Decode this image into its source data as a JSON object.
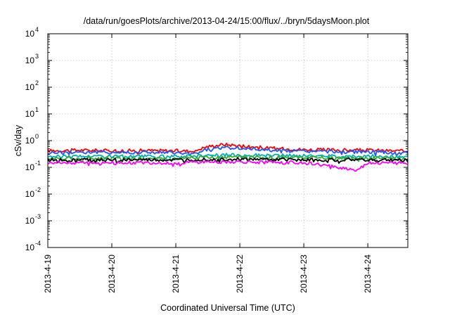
{
  "chart_data": {
    "type": "line",
    "title": "/data/run/goesPlots/archive/2013-04-24/15:00/flux/../bryn/5daysMoon.plot",
    "xlabel": "Coordinated Universal Time (UTC)",
    "ylabel": "cSv/day",
    "yscale": "log",
    "ylim": [
      0.0001,
      10000
    ],
    "y_ticks": [
      {
        "base": "10",
        "exp": "4"
      },
      {
        "base": "10",
        "exp": "3"
      },
      {
        "base": "10",
        "exp": "2"
      },
      {
        "base": "10",
        "exp": "1"
      },
      {
        "base": "10",
        "exp": "0"
      },
      {
        "base": "10",
        "exp": "-1"
      },
      {
        "base": "10",
        "exp": "-2"
      },
      {
        "base": "10",
        "exp": "-3"
      },
      {
        "base": "10",
        "exp": "-4"
      }
    ],
    "x_ticks": [
      "2013-4-19",
      "2013-4-20",
      "2013-4-21",
      "2013-4-22",
      "2013-4-23",
      "2013-4-24"
    ],
    "xlim": [
      "2013-04-19T00:00",
      "2013-04-24T15:00"
    ],
    "grid": true,
    "series": [
      {
        "color": "#ff0000",
        "values": [
          {
            "x": "2013-04-19T00:00",
            "y": 0.42
          },
          {
            "x": "2013-04-19T12:00",
            "y": 0.44
          },
          {
            "x": "2013-04-20T00:00",
            "y": 0.42
          },
          {
            "x": "2013-04-20T12:00",
            "y": 0.43
          },
          {
            "x": "2013-04-21T00:00",
            "y": 0.42
          },
          {
            "x": "2013-04-21T06:00",
            "y": 0.4
          },
          {
            "x": "2013-04-21T12:00",
            "y": 0.6
          },
          {
            "x": "2013-04-21T18:00",
            "y": 0.72
          },
          {
            "x": "2013-04-22T00:00",
            "y": 0.65
          },
          {
            "x": "2013-04-22T12:00",
            "y": 0.52
          },
          {
            "x": "2013-04-23T00:00",
            "y": 0.46
          },
          {
            "x": "2013-04-23T12:00",
            "y": 0.45
          },
          {
            "x": "2013-04-24T00:00",
            "y": 0.44
          },
          {
            "x": "2013-04-24T15:00",
            "y": 0.4
          }
        ]
      },
      {
        "color": "#2255ff",
        "values": [
          {
            "x": "2013-04-19T00:00",
            "y": 0.36
          },
          {
            "x": "2013-04-19T12:00",
            "y": 0.38
          },
          {
            "x": "2013-04-20T00:00",
            "y": 0.36
          },
          {
            "x": "2013-04-20T12:00",
            "y": 0.37
          },
          {
            "x": "2013-04-21T00:00",
            "y": 0.35
          },
          {
            "x": "2013-04-21T06:00",
            "y": 0.3
          },
          {
            "x": "2013-04-21T12:00",
            "y": 0.48
          },
          {
            "x": "2013-04-21T18:00",
            "y": 0.55
          },
          {
            "x": "2013-04-22T00:00",
            "y": 0.52
          },
          {
            "x": "2013-04-22T12:00",
            "y": 0.44
          },
          {
            "x": "2013-04-23T00:00",
            "y": 0.4
          },
          {
            "x": "2013-04-23T12:00",
            "y": 0.39
          },
          {
            "x": "2013-04-24T00:00",
            "y": 0.38
          },
          {
            "x": "2013-04-24T15:00",
            "y": 0.33
          }
        ]
      },
      {
        "color": "#00b0b0",
        "values": [
          {
            "x": "2013-04-19T00:00",
            "y": 0.26
          },
          {
            "x": "2013-04-20T00:00",
            "y": 0.26
          },
          {
            "x": "2013-04-21T00:00",
            "y": 0.25
          },
          {
            "x": "2013-04-21T12:00",
            "y": 0.29
          },
          {
            "x": "2013-04-22T00:00",
            "y": 0.29
          },
          {
            "x": "2013-04-23T00:00",
            "y": 0.27
          },
          {
            "x": "2013-04-24T00:00",
            "y": 0.26
          },
          {
            "x": "2013-04-24T15:00",
            "y": 0.25
          }
        ]
      },
      {
        "color": "#33aa33",
        "values": [
          {
            "x": "2013-04-19T00:00",
            "y": 0.22
          },
          {
            "x": "2013-04-20T00:00",
            "y": 0.22
          },
          {
            "x": "2013-04-21T00:00",
            "y": 0.21
          },
          {
            "x": "2013-04-21T12:00",
            "y": 0.24
          },
          {
            "x": "2013-04-22T00:00",
            "y": 0.24
          },
          {
            "x": "2013-04-23T00:00",
            "y": 0.23
          },
          {
            "x": "2013-04-24T00:00",
            "y": 0.22
          },
          {
            "x": "2013-04-24T15:00",
            "y": 0.21
          }
        ]
      },
      {
        "color": "#000000",
        "values": [
          {
            "x": "2013-04-19T00:00",
            "y": 0.19
          },
          {
            "x": "2013-04-20T00:00",
            "y": 0.19
          },
          {
            "x": "2013-04-21T00:00",
            "y": 0.185
          },
          {
            "x": "2013-04-21T12:00",
            "y": 0.2
          },
          {
            "x": "2013-04-22T00:00",
            "y": 0.2
          },
          {
            "x": "2013-04-23T00:00",
            "y": 0.19
          },
          {
            "x": "2013-04-24T00:00",
            "y": 0.19
          },
          {
            "x": "2013-04-24T15:00",
            "y": 0.185
          }
        ]
      },
      {
        "color": "#ff00ff",
        "values": [
          {
            "x": "2013-04-19T00:00",
            "y": 0.15
          },
          {
            "x": "2013-04-20T00:00",
            "y": 0.15
          },
          {
            "x": "2013-04-21T00:00",
            "y": 0.145
          },
          {
            "x": "2013-04-21T12:00",
            "y": 0.16
          },
          {
            "x": "2013-04-22T00:00",
            "y": 0.16
          },
          {
            "x": "2013-04-23T00:00",
            "y": 0.15
          },
          {
            "x": "2013-04-23T20:00",
            "y": 0.08
          },
          {
            "x": "2013-04-24T00:00",
            "y": 0.15
          },
          {
            "x": "2013-04-24T15:00",
            "y": 0.14
          }
        ]
      }
    ]
  }
}
